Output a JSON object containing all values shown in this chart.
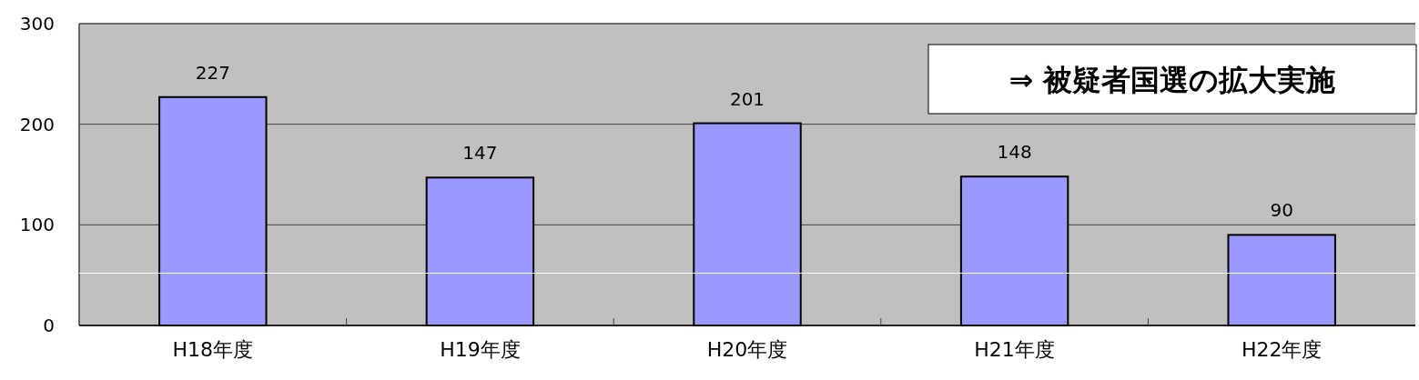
{
  "chart_data": {
    "type": "bar",
    "categories": [
      "H18年度",
      "H19年度",
      "H20年度",
      "H21年度",
      "H22年度"
    ],
    "values": [
      227,
      147,
      201,
      148,
      90
    ],
    "color": "#9999ff",
    "ylim": [
      0,
      300
    ],
    "yticks": [
      0,
      100,
      200,
      300
    ],
    "grid": "y",
    "data_labels": true,
    "annotations": [
      "⇒ 被疑者国選の拡大実施"
    ],
    "ref_lines": [
      {
        "axis": "y",
        "value": 52,
        "color": "#ffffff"
      }
    ]
  }
}
